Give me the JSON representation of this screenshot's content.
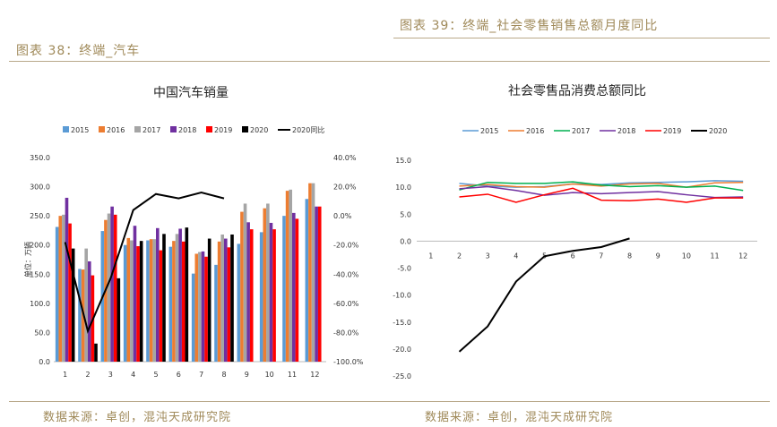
{
  "captions": {
    "left": "图表 38：终端_汽车",
    "right": "图表 39：终端_社会零售销售总额月度同比"
  },
  "sources": {
    "left": "数据来源：卓创，混沌天成研究院",
    "right": "数据来源：卓创，混沌天成研究院"
  },
  "colors": {
    "2015": "#5b9bd5",
    "2016": "#ed7d31",
    "2017": "#a5a5a5",
    "2018": "#7030a0",
    "2019": "#ff0000",
    "2020": "#000000",
    "s2017": "#00b050",
    "caption": "#a08a5a"
  },
  "chart_data": [
    {
      "type": "bar",
      "title": "中国汽车销量",
      "ylabel": "单位：万辆",
      "categories": [
        "1",
        "2",
        "3",
        "4",
        "5",
        "6",
        "7",
        "8",
        "9",
        "10",
        "11",
        "12"
      ],
      "ylim": [
        0,
        350
      ],
      "yticks": [
        "0.0",
        "50.0",
        "100.0",
        "150.0",
        "200.0",
        "250.0",
        "300.0",
        "350.0"
      ],
      "y2lim": [
        -100,
        40
      ],
      "y2ticks": [
        "-100.0%",
        "-80.0%",
        "-60.0%",
        "-40.0%",
        "-20.0%",
        "0.0%",
        "20.0%",
        "40.0%"
      ],
      "legend_placement": "top",
      "series": [
        {
          "name": "2015",
          "values": [
            231,
            159,
            224,
            200,
            208,
            197,
            151,
            166,
            202,
            222,
            250,
            279
          ]
        },
        {
          "name": "2016",
          "values": [
            250,
            158,
            243,
            212,
            210,
            207,
            185,
            206,
            257,
            263,
            293,
            306
          ]
        },
        {
          "name": "2017",
          "values": [
            252,
            194,
            254,
            208,
            210,
            219,
            188,
            218,
            271,
            271,
            295,
            306
          ]
        },
        {
          "name": "2018",
          "values": [
            281,
            172,
            266,
            233,
            229,
            228,
            189,
            211,
            239,
            238,
            255,
            266
          ]
        },
        {
          "name": "2019",
          "values": [
            237,
            148,
            252,
            198,
            191,
            206,
            180,
            196,
            227,
            227,
            245,
            266
          ]
        },
        {
          "name": "2020",
          "values": [
            194,
            31,
            143,
            207,
            219,
            230,
            211,
            218,
            null,
            null,
            null,
            null
          ]
        },
        {
          "name": "2020同比",
          "type": "line",
          "axis": "right",
          "values": [
            -18,
            -79,
            -43,
            4,
            15,
            12,
            16,
            12,
            null,
            null,
            null,
            null
          ]
        }
      ]
    },
    {
      "type": "line",
      "title": "社会零售品消费总额同比",
      "x": [
        "1",
        "2",
        "3",
        "4",
        "5",
        "6",
        "7",
        "8",
        "9",
        "10",
        "11",
        "12"
      ],
      "ylim": [
        -25,
        15
      ],
      "yticks": [
        "15.0",
        "10.0",
        "5.0",
        "0.0",
        "-5.0",
        "-10.0",
        "-15.0",
        "-20.0",
        "-25.0"
      ],
      "legend_placement": "top",
      "series": [
        {
          "name": "2015",
          "values": [
            null,
            10.7,
            10.2,
            10.0,
            10.1,
            10.6,
            10.5,
            10.8,
            10.9,
            11.0,
            11.2,
            11.1
          ]
        },
        {
          "name": "2016",
          "values": [
            null,
            10.2,
            10.5,
            10.1,
            10.0,
            10.6,
            10.2,
            10.6,
            10.7,
            10.0,
            10.8,
            10.9
          ]
        },
        {
          "name": "2017",
          "values": [
            null,
            9.5,
            10.9,
            10.7,
            10.7,
            11.0,
            10.4,
            10.1,
            10.3,
            10.0,
            10.2,
            9.4
          ]
        },
        {
          "name": "2018",
          "values": [
            null,
            9.7,
            10.1,
            9.4,
            8.5,
            9.0,
            8.8,
            9.0,
            9.2,
            8.6,
            8.1,
            8.2
          ]
        },
        {
          "name": "2019",
          "values": [
            null,
            8.2,
            8.7,
            7.2,
            8.6,
            9.8,
            7.6,
            7.5,
            7.8,
            7.2,
            8.0,
            8.0
          ]
        },
        {
          "name": "2020",
          "values": [
            null,
            -20.5,
            -15.8,
            -7.5,
            -2.8,
            -1.8,
            -1.1,
            0.5,
            null,
            null,
            null,
            null
          ]
        }
      ]
    }
  ]
}
